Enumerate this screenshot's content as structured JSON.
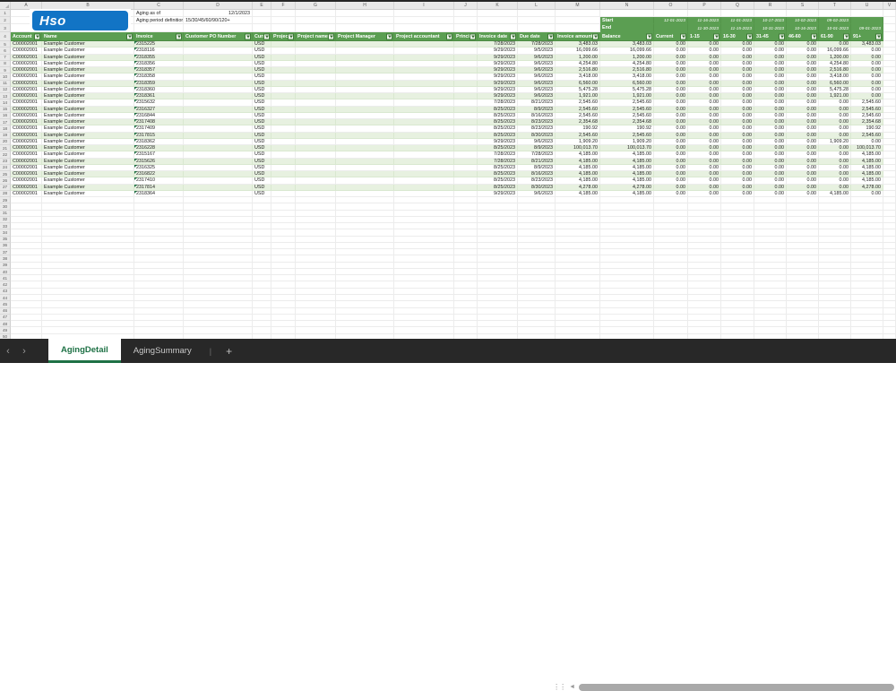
{
  "logo": {
    "text": "Hso",
    "bg_color": "#1274c5"
  },
  "titles": {
    "aging_as_of_label": "Aging as of",
    "aging_as_of_value": "12/1/2023",
    "aging_period_label": "Aging period definition",
    "aging_period_value": "15/30/45/60/90/120+"
  },
  "column_letters": [
    "",
    "A",
    "B",
    "C",
    "D",
    "E",
    "F",
    "G",
    "H",
    "I",
    "J",
    "K",
    "L",
    "M",
    "N",
    "O",
    "P",
    "Q",
    "R",
    "S",
    "T",
    "U",
    "V"
  ],
  "bucket_window": {
    "start_label": "Start",
    "end_label": "End",
    "starts": [
      "12-01-2023",
      "11-16-2023",
      "11-01-2023",
      "10-17-2023",
      "10-02-2023",
      "09-02-2023",
      ""
    ],
    "ends": [
      "",
      "11-30-2023",
      "11-15-2023",
      "10-31-2023",
      "10-16-2023",
      "10-01-2023",
      "09-01-2023"
    ]
  },
  "headers": [
    "Account",
    "Name",
    "Invoice",
    "Customer PO Number",
    "Curre",
    "Project",
    "Project name",
    "Project Manager",
    "Project accountant",
    "Princip",
    "Invoice date",
    "Due date",
    "Invoice amount",
    "Balance",
    "Current",
    "1-15",
    "16-30",
    "31-45",
    "46-60",
    "61-90",
    "91+"
  ],
  "rows": [
    [
      "C00002001",
      "Example Customer",
      "2315225",
      "",
      "USD",
      "",
      "",
      "",
      "",
      "",
      "7/28/2023",
      "7/28/2023",
      "3,483.03",
      "3,483.03",
      "0.00",
      "0.00",
      "0.00",
      "0.00",
      "0.00",
      "0.00",
      "3,483.03"
    ],
    [
      "C00002001",
      "Example Customer",
      "2318116",
      "",
      "USD",
      "",
      "",
      "",
      "",
      "",
      "9/29/2023",
      "9/5/2023",
      "16,099.66",
      "16,099.66",
      "0.00",
      "0.00",
      "0.00",
      "0.00",
      "0.00",
      "16,099.66",
      "0.00"
    ],
    [
      "C00002001",
      "Example Customer",
      "2318355",
      "",
      "USD",
      "",
      "",
      "",
      "",
      "",
      "9/29/2023",
      "9/6/2023",
      "1,200.00",
      "1,200.00",
      "0.00",
      "0.00",
      "0.00",
      "0.00",
      "0.00",
      "1,200.00",
      "0.00"
    ],
    [
      "C00002001",
      "Example Customer",
      "2318356",
      "",
      "USD",
      "",
      "",
      "",
      "",
      "",
      "9/29/2023",
      "9/6/2023",
      "4,254.80",
      "4,254.80",
      "0.00",
      "0.00",
      "0.00",
      "0.00",
      "0.00",
      "4,254.80",
      "0.00"
    ],
    [
      "C00002001",
      "Example Customer",
      "2318357",
      "",
      "USD",
      "",
      "",
      "",
      "",
      "",
      "9/29/2023",
      "9/6/2023",
      "2,516.80",
      "2,516.80",
      "0.00",
      "0.00",
      "0.00",
      "0.00",
      "0.00",
      "2,516.80",
      "0.00"
    ],
    [
      "C00002001",
      "Example Customer",
      "2318358",
      "",
      "USD",
      "",
      "",
      "",
      "",
      "",
      "9/29/2023",
      "9/6/2023",
      "3,418.00",
      "3,418.00",
      "0.00",
      "0.00",
      "0.00",
      "0.00",
      "0.00",
      "3,418.00",
      "0.00"
    ],
    [
      "C00002001",
      "Example Customer",
      "2318359",
      "",
      "USD",
      "",
      "",
      "",
      "",
      "",
      "9/29/2023",
      "9/6/2023",
      "6,560.00",
      "6,560.00",
      "0.00",
      "0.00",
      "0.00",
      "0.00",
      "0.00",
      "6,560.00",
      "0.00"
    ],
    [
      "C00002001",
      "Example Customer",
      "2318360",
      "",
      "USD",
      "",
      "",
      "",
      "",
      "",
      "9/29/2023",
      "9/6/2023",
      "5,475.28",
      "5,475.28",
      "0.00",
      "0.00",
      "0.00",
      "0.00",
      "0.00",
      "5,475.28",
      "0.00"
    ],
    [
      "C00002001",
      "Example Customer",
      "2318361",
      "",
      "USD",
      "",
      "",
      "",
      "",
      "",
      "9/29/2023",
      "9/6/2023",
      "1,921.00",
      "1,921.00",
      "0.00",
      "0.00",
      "0.00",
      "0.00",
      "0.00",
      "1,921.00",
      "0.00"
    ],
    [
      "C00002001",
      "Example Customer",
      "2315632",
      "",
      "USD",
      "",
      "",
      "",
      "",
      "",
      "7/28/2023",
      "8/21/2023",
      "2,545.60",
      "2,545.60",
      "0.00",
      "0.00",
      "0.00",
      "0.00",
      "0.00",
      "0.00",
      "2,545.60"
    ],
    [
      "C00002001",
      "Example Customer",
      "2316327",
      "",
      "USD",
      "",
      "",
      "",
      "",
      "",
      "8/25/2023",
      "8/9/2023",
      "2,545.60",
      "2,545.60",
      "0.00",
      "0.00",
      "0.00",
      "0.00",
      "0.00",
      "0.00",
      "2,545.60"
    ],
    [
      "C00002001",
      "Example Customer",
      "2316844",
      "",
      "USD",
      "",
      "",
      "",
      "",
      "",
      "8/25/2023",
      "8/16/2023",
      "2,545.60",
      "2,545.60",
      "0.00",
      "0.00",
      "0.00",
      "0.00",
      "0.00",
      "0.00",
      "2,545.60"
    ],
    [
      "C00002001",
      "Example Customer",
      "2317408",
      "",
      "USD",
      "",
      "",
      "",
      "",
      "",
      "8/25/2023",
      "8/23/2023",
      "2,354.68",
      "2,354.68",
      "0.00",
      "0.00",
      "0.00",
      "0.00",
      "0.00",
      "0.00",
      "2,354.68"
    ],
    [
      "C00002001",
      "Example Customer",
      "2317409",
      "",
      "USD",
      "",
      "",
      "",
      "",
      "",
      "8/25/2023",
      "8/23/2023",
      "190.92",
      "190.92",
      "0.00",
      "0.00",
      "0.00",
      "0.00",
      "0.00",
      "0.00",
      "190.92"
    ],
    [
      "C00002001",
      "Example Customer",
      "2317815",
      "",
      "USD",
      "",
      "",
      "",
      "",
      "",
      "8/25/2023",
      "8/30/2023",
      "2,545.60",
      "2,545.60",
      "0.00",
      "0.00",
      "0.00",
      "0.00",
      "0.00",
      "0.00",
      "2,545.60"
    ],
    [
      "C00002001",
      "Example Customer",
      "2318362",
      "",
      "USD",
      "",
      "",
      "",
      "",
      "",
      "9/29/2023",
      "9/6/2023",
      "1,909.20",
      "1,909.20",
      "0.00",
      "0.00",
      "0.00",
      "0.00",
      "0.00",
      "1,909.20",
      "0.00"
    ],
    [
      "C00002001",
      "Example Customer",
      "2316228",
      "",
      "USD",
      "",
      "",
      "",
      "",
      "",
      "8/25/2023",
      "8/9/2023",
      "100,013.70",
      "100,013.70",
      "0.00",
      "0.00",
      "0.00",
      "0.00",
      "0.00",
      "0.00",
      "100,013.70"
    ],
    [
      "C00002001",
      "Example Customer",
      "2315167",
      "",
      "USD",
      "",
      "",
      "",
      "",
      "",
      "7/28/2023",
      "7/28/2023",
      "4,185.00",
      "4,185.00",
      "0.00",
      "0.00",
      "0.00",
      "0.00",
      "0.00",
      "0.00",
      "4,185.00"
    ],
    [
      "C00002001",
      "Example Customer",
      "2315626",
      "",
      "USD",
      "",
      "",
      "",
      "",
      "",
      "7/28/2023",
      "8/21/2023",
      "4,185.00",
      "4,185.00",
      "0.00",
      "0.00",
      "0.00",
      "0.00",
      "0.00",
      "0.00",
      "4,185.00"
    ],
    [
      "C00002001",
      "Example Customer",
      "2316325",
      "",
      "USD",
      "",
      "",
      "",
      "",
      "",
      "8/25/2023",
      "8/9/2023",
      "4,185.00",
      "4,185.00",
      "0.00",
      "0.00",
      "0.00",
      "0.00",
      "0.00",
      "0.00",
      "4,185.00"
    ],
    [
      "C00002001",
      "Example Customer",
      "2316822",
      "",
      "USD",
      "",
      "",
      "",
      "",
      "",
      "8/25/2023",
      "8/16/2023",
      "4,185.00",
      "4,185.00",
      "0.00",
      "0.00",
      "0.00",
      "0.00",
      "0.00",
      "0.00",
      "4,185.00"
    ],
    [
      "C00002001",
      "Example Customer",
      "2317410",
      "",
      "USD",
      "",
      "",
      "",
      "",
      "",
      "8/25/2023",
      "8/23/2023",
      "4,185.00",
      "4,185.00",
      "0.00",
      "0.00",
      "0.00",
      "0.00",
      "0.00",
      "0.00",
      "4,185.00"
    ],
    [
      "C00002001",
      "Example Customer",
      "2317814",
      "",
      "USD",
      "",
      "",
      "",
      "",
      "",
      "8/25/2023",
      "8/30/2023",
      "4,278.00",
      "4,278.00",
      "0.00",
      "0.00",
      "0.00",
      "0.00",
      "0.00",
      "0.00",
      "4,278.00"
    ],
    [
      "C00002001",
      "Example Customer",
      "2318364",
      "",
      "USD",
      "",
      "",
      "",
      "",
      "",
      "9/29/2023",
      "9/6/2023",
      "4,185.00",
      "4,185.00",
      "0.00",
      "0.00",
      "0.00",
      "0.00",
      "0.00",
      "4,185.00",
      "0.00"
    ]
  ],
  "tabs": {
    "nav_prev": "‹",
    "nav_next": "›",
    "detail_label": "AgingDetail",
    "summary_label": "AgingSummary",
    "separator": "|",
    "add_label": "+"
  },
  "colors": {
    "header_green": "#5b9e52",
    "band_green": "#e7f1e0",
    "tab_green": "#1e7145",
    "logo_blue": "#1274c5",
    "bar_dark": "#282828"
  }
}
